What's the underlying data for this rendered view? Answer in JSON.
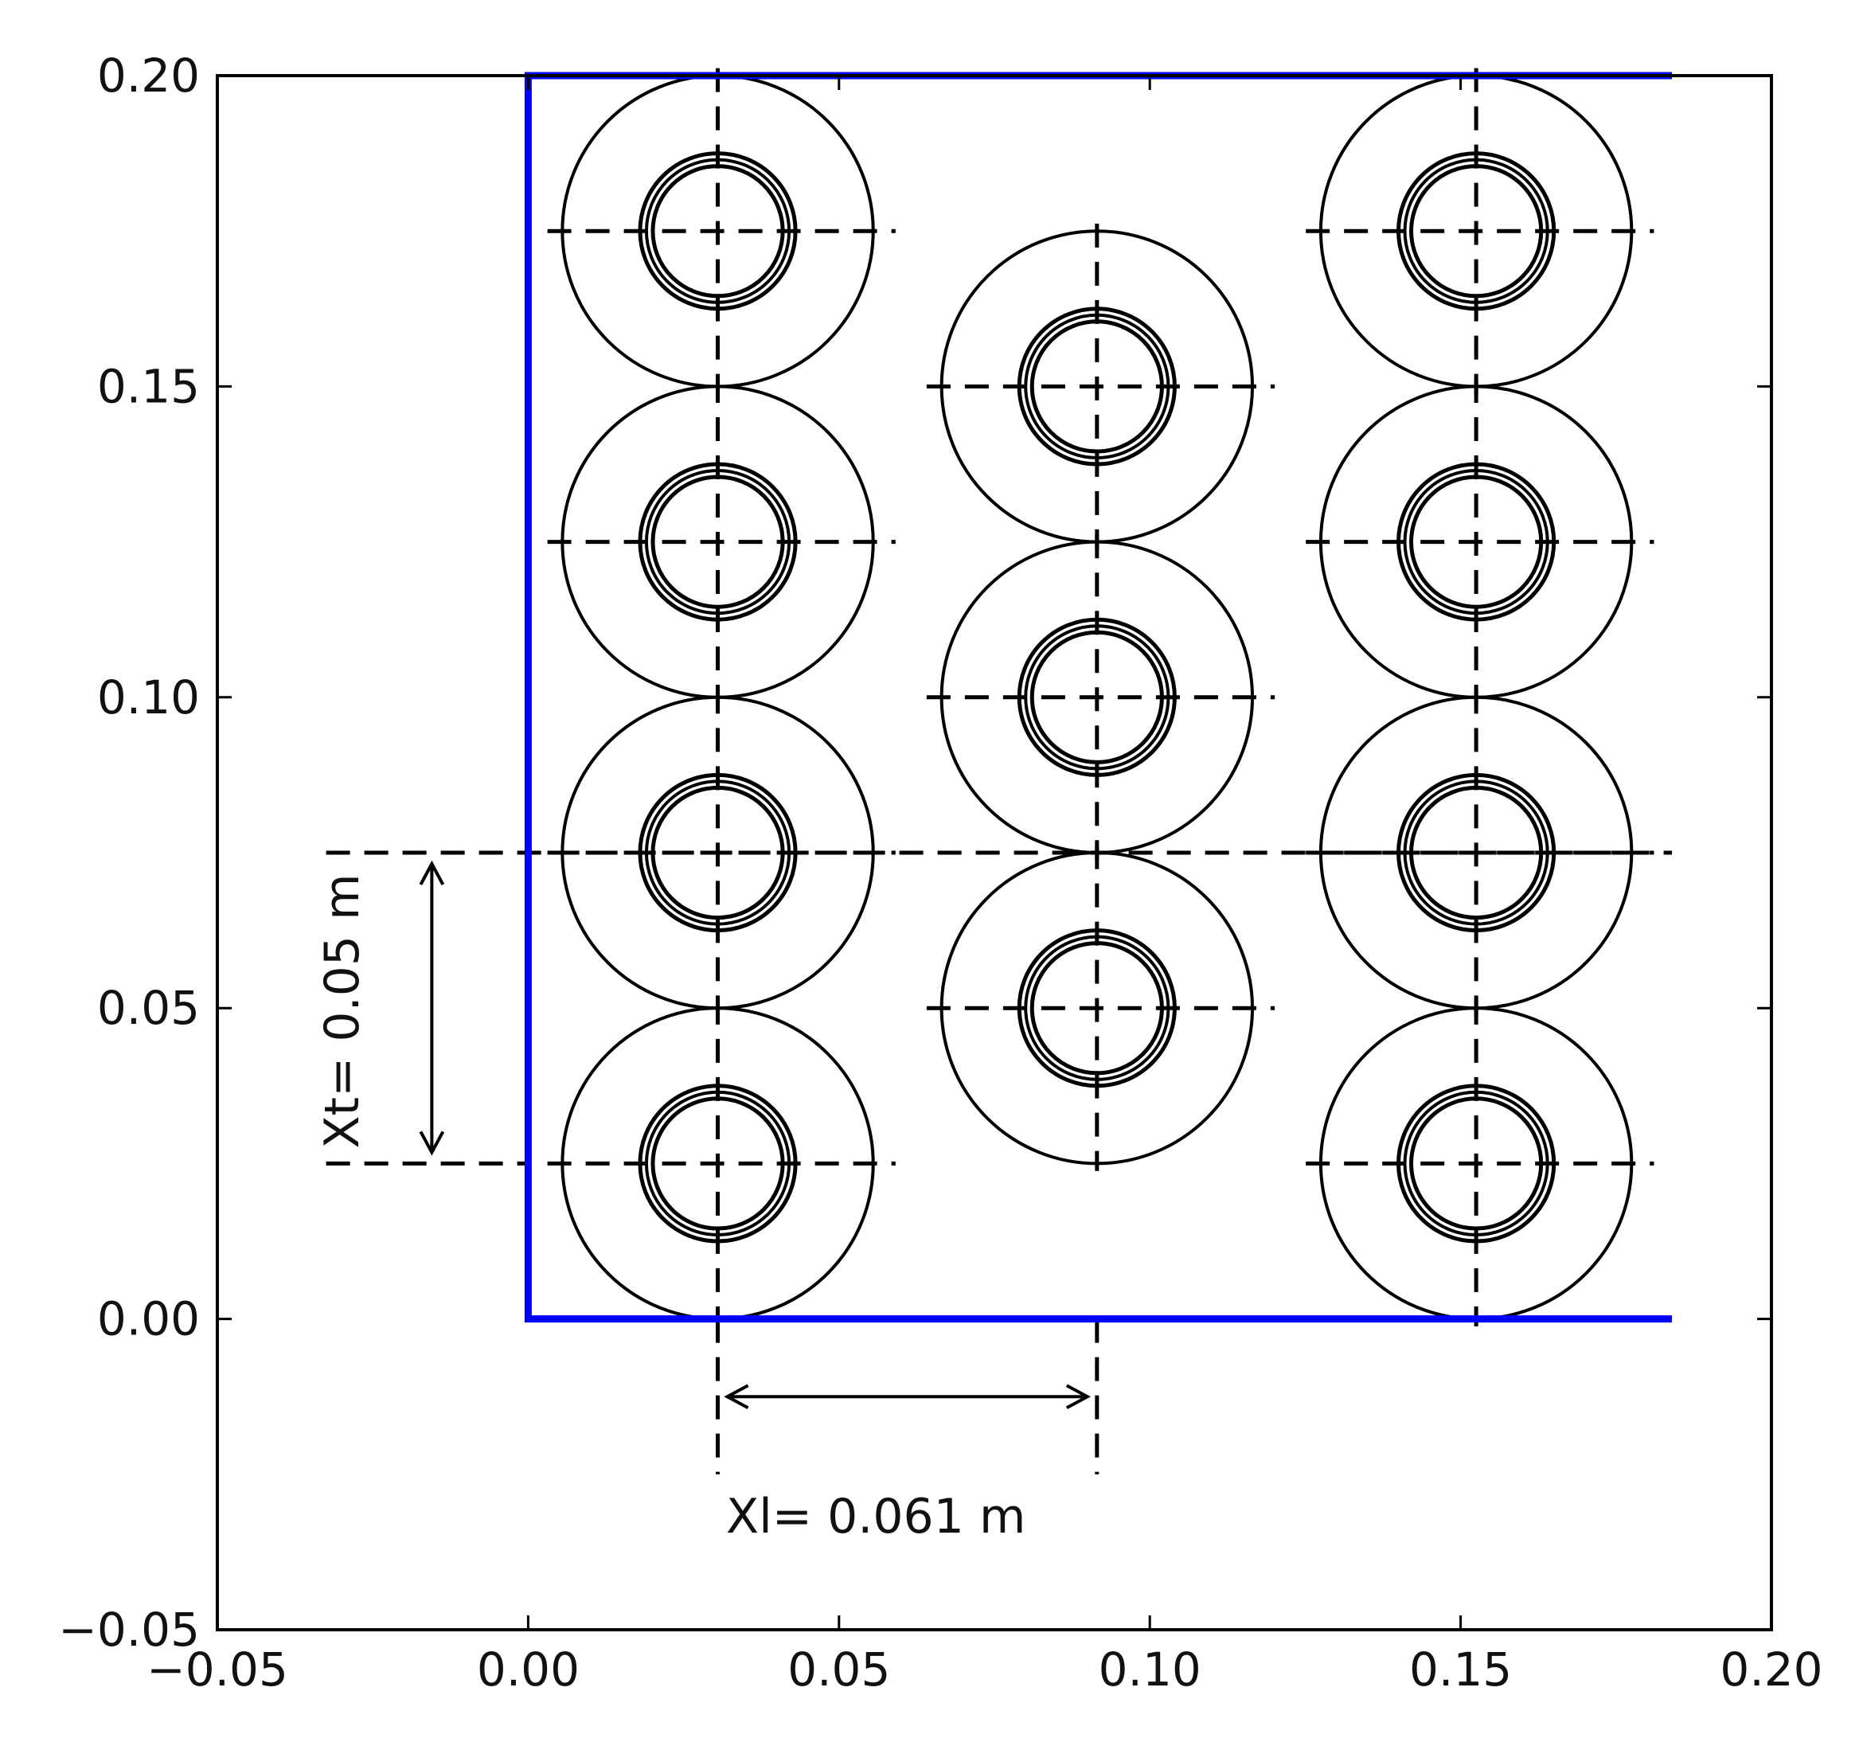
{
  "chart_data": {
    "type": "scatter",
    "title": "",
    "xlabel": "",
    "ylabel": "",
    "xlim": [
      -0.05,
      0.2
    ],
    "ylim": [
      -0.05,
      0.2
    ],
    "xticks": [
      "−0.05",
      "0.00",
      "0.05",
      "0.10",
      "0.15",
      "0.20"
    ],
    "yticks": [
      "−0.05",
      "0.00",
      "0.05",
      "0.10",
      "0.15",
      "0.20"
    ],
    "grid": false,
    "boundary": {
      "color": "#0000ff",
      "points": [
        [
          0.184,
          0.0
        ],
        [
          0.0,
          0.0
        ],
        [
          0.0,
          0.2
        ],
        [
          0.184,
          0.2
        ]
      ]
    },
    "tube_outer_diameter": 0.025,
    "fin_outer_diameter": 0.05,
    "tubes": [
      {
        "x": 0.0305,
        "y": 0.025
      },
      {
        "x": 0.0305,
        "y": 0.075
      },
      {
        "x": 0.0305,
        "y": 0.125
      },
      {
        "x": 0.0305,
        "y": 0.175
      },
      {
        "x": 0.0915,
        "y": 0.05
      },
      {
        "x": 0.0915,
        "y": 0.1
      },
      {
        "x": 0.0915,
        "y": 0.15
      },
      {
        "x": 0.1525,
        "y": 0.025
      },
      {
        "x": 0.1525,
        "y": 0.075
      },
      {
        "x": 0.1525,
        "y": 0.125
      },
      {
        "x": 0.1525,
        "y": 0.175
      }
    ],
    "annotations": {
      "transverse_pitch": {
        "text": "Xt= 0.05 m",
        "value": 0.05,
        "from_y": 0.025,
        "to_y": 0.075,
        "at_x": -0.0155
      },
      "longitudinal_pitch": {
        "text": "Xl= 0.061 m",
        "value": 0.061,
        "from_x": 0.0305,
        "to_x": 0.0915,
        "at_y": -0.0125
      }
    }
  }
}
